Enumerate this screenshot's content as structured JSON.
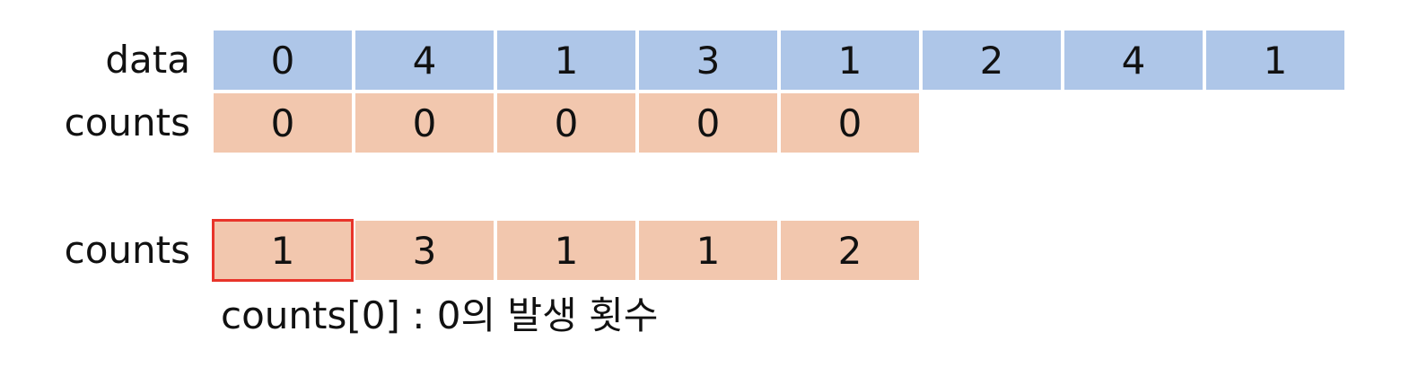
{
  "rows": [
    {
      "label": "data",
      "color": "#aec6e8",
      "values": [
        "0",
        "4",
        "1",
        "3",
        "1",
        "2",
        "4",
        "1"
      ]
    },
    {
      "label": "counts",
      "color": "#f2c7ae",
      "values": [
        "0",
        "0",
        "0",
        "0",
        "0"
      ]
    },
    {
      "label": "counts",
      "color": "#f2c7ae",
      "values": [
        "1",
        "3",
        "1",
        "1",
        "2"
      ],
      "highlight_index": 0,
      "highlight_color": "#e8342a"
    }
  ],
  "caption": "counts[0] : 0의 발생 횟수"
}
